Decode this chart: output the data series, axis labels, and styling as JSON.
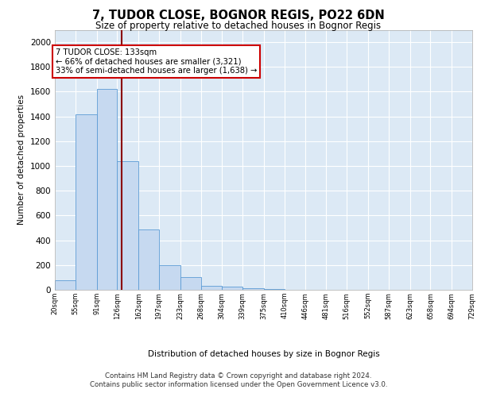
{
  "title1": "7, TUDOR CLOSE, BOGNOR REGIS, PO22 6DN",
  "title2": "Size of property relative to detached houses in Bognor Regis",
  "xlabel": "Distribution of detached houses by size in Bognor Regis",
  "ylabel": "Number of detached properties",
  "bin_edges": [
    20,
    55,
    91,
    126,
    162,
    197,
    233,
    268,
    304,
    339,
    375,
    410,
    446,
    481,
    516,
    552,
    587,
    623,
    658,
    694,
    729
  ],
  "bar_heights": [
    80,
    1420,
    1620,
    1040,
    490,
    200,
    100,
    35,
    25,
    10,
    5,
    3,
    2,
    1,
    1,
    1,
    0,
    0,
    0,
    0
  ],
  "bar_color": "#c6d9f0",
  "bar_edgecolor": "#5b9bd5",
  "property_size": 133,
  "vline_color": "#8b0000",
  "annotation_title": "7 TUDOR CLOSE: 133sqm",
  "annotation_line1": "← 66% of detached houses are smaller (3,321)",
  "annotation_line2": "33% of semi-detached houses are larger (1,638) →",
  "annotation_box_color": "#ffffff",
  "annotation_box_edgecolor": "#cc0000",
  "ylim": [
    0,
    2100
  ],
  "background_color": "#dce9f5",
  "grid_color": "#ffffff",
  "footer1": "Contains HM Land Registry data © Crown copyright and database right 2024.",
  "footer2": "Contains public sector information licensed under the Open Government Licence v3.0."
}
